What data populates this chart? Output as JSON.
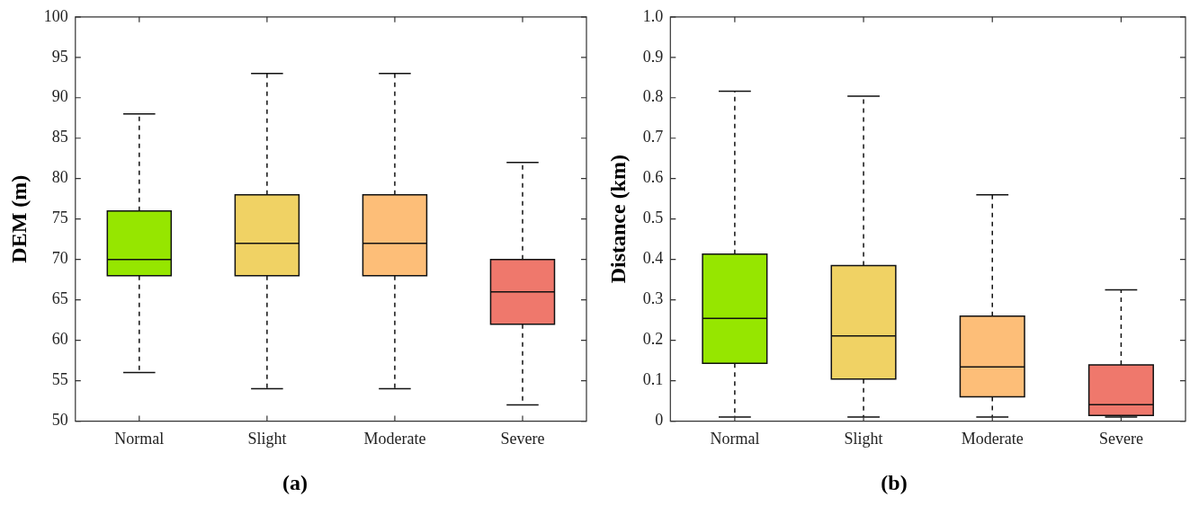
{
  "chart_data": [
    {
      "type": "box",
      "title": "(a)",
      "ylabel": "DEM (m)",
      "categories": [
        "Normal",
        "Slight",
        "Moderate",
        "Severe"
      ],
      "colors": [
        "#96e600",
        "#f0d264",
        "#fdbe78",
        "#ef786c"
      ],
      "boxes": [
        {
          "low": 56,
          "q1": 68,
          "median": 70,
          "q3": 76,
          "high": 88
        },
        {
          "low": 54,
          "q1": 68,
          "median": 72,
          "q3": 78,
          "high": 93
        },
        {
          "low": 54,
          "q1": 68,
          "median": 72,
          "q3": 78,
          "high": 93
        },
        {
          "low": 52,
          "q1": 62,
          "median": 66,
          "q3": 70,
          "high": 82
        }
      ],
      "ylim": [
        50,
        100
      ],
      "yticks": [
        50,
        55,
        60,
        65,
        70,
        75,
        80,
        85,
        90,
        95,
        100
      ],
      "grid": false,
      "legend": false
    },
    {
      "type": "box",
      "title": "(b)",
      "ylabel": "Distance (km)",
      "categories": [
        "Normal",
        "Slight",
        "Moderate",
        "Severe"
      ],
      "colors": [
        "#96e600",
        "#f0d264",
        "#fdbe78",
        "#ef786c"
      ],
      "boxes": [
        {
          "low": 0.01,
          "q1": 0.143,
          "median": 0.254,
          "q3": 0.413,
          "high": 0.816
        },
        {
          "low": 0.01,
          "q1": 0.104,
          "median": 0.211,
          "q3": 0.385,
          "high": 0.804
        },
        {
          "low": 0.01,
          "q1": 0.06,
          "median": 0.134,
          "q3": 0.26,
          "high": 0.56
        },
        {
          "low": 0.01,
          "q1": 0.014,
          "median": 0.041,
          "q3": 0.139,
          "high": 0.325
        }
      ],
      "ylim": [
        0,
        1
      ],
      "yticks": [
        0,
        0.1,
        0.2,
        0.3,
        0.4,
        0.5,
        0.6,
        0.7,
        0.8,
        0.9,
        {
          "value": 1,
          "label": "1.0"
        }
      ],
      "grid": false,
      "legend": false
    }
  ]
}
